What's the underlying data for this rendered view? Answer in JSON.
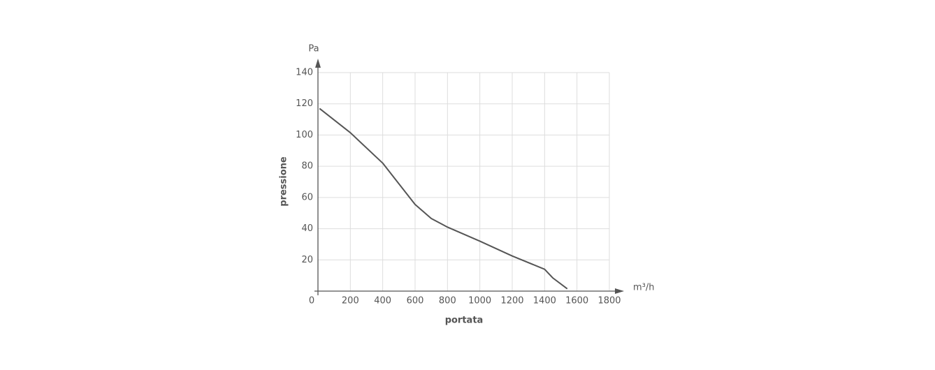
{
  "chart_data": {
    "type": "line",
    "title_y": "Pa",
    "unit_x": "m³/h",
    "ylabel": "pressione",
    "xlabel": "portata",
    "x": [
      10,
      200,
      400,
      600,
      700,
      800,
      1000,
      1200,
      1400,
      1450,
      1540
    ],
    "series": [
      {
        "color": "#555555",
        "values": [
          117,
          101.5,
          82,
          55.5,
          46.5,
          41,
          32,
          22.5,
          14,
          8.5,
          1.5
        ]
      }
    ],
    "xlim": [
      0,
      1800
    ],
    "ylim": [
      0,
      140
    ],
    "xticks": [
      0,
      200,
      400,
      600,
      800,
      1000,
      1200,
      1400,
      1600,
      1800
    ],
    "yticks": [
      20,
      40,
      60,
      80,
      100,
      120,
      140
    ],
    "grid": true
  }
}
